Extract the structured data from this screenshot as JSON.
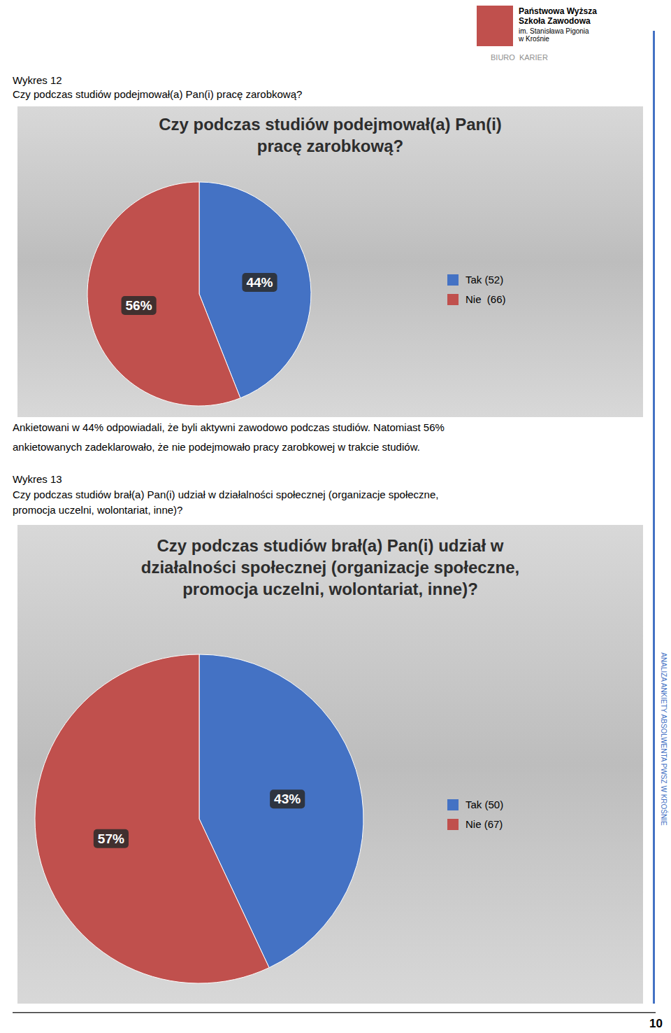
{
  "chart_data": [
    {
      "type": "pie",
      "title": "Czy podczas studiów podejmował(a) Pan(i)\npracę zarobkową?",
      "categories": [
        "Tak (52)",
        "Nie  (66)"
      ],
      "values": [
        44,
        56
      ],
      "value_labels": [
        "44%",
        "56%"
      ],
      "colors": [
        "#4472C4",
        "#C0504D"
      ],
      "data_labels": true,
      "legend": "right"
    },
    {
      "type": "pie",
      "title": "Czy podczas studiów brał(a) Pan(i) udział w\ndziałalności społecznej (organizacje społeczne,\npromocja uczelni, wolontariat, inne)?",
      "categories": [
        "Tak (50)",
        "Nie (67)"
      ],
      "values": [
        43,
        57
      ],
      "value_labels": [
        "43%",
        "57%"
      ],
      "colors": [
        "#4472C4",
        "#C0504D"
      ],
      "data_labels": true,
      "legend": "right"
    }
  ],
  "page": {
    "institution": [
      "Państwowa Wyższa",
      "Szkoła Zawodowa",
      "im. Stanisława Pigonia",
      "w Krośnie"
    ],
    "unit": "BIURO  KARIER",
    "chart1_heading": [
      "Wykres 12",
      "Czy podczas studiów podejmował(a) Pan(i) pracę zarobkową?"
    ],
    "between_charts": [
      "Ankietowani w 44% odpowiadali, że byli aktywni zawodowo podczas studiów. Natomiast 56%",
      "ankietowanych zadeklarowało, że nie podejmowało pracy zarobkowej w trakcie studiów."
    ],
    "chart2_heading": [
      "Wykres 13",
      "Czy podczas studiów brał(a) Pan(i) udział w działalności społecznej (organizacje społeczne,",
      "promocja uczelni, wolontariat, inne)?"
    ],
    "side_text": "ANALIZA ANKIETY ABSOLWENTA PWSZ W KROŚNIE",
    "page_number": "10"
  }
}
